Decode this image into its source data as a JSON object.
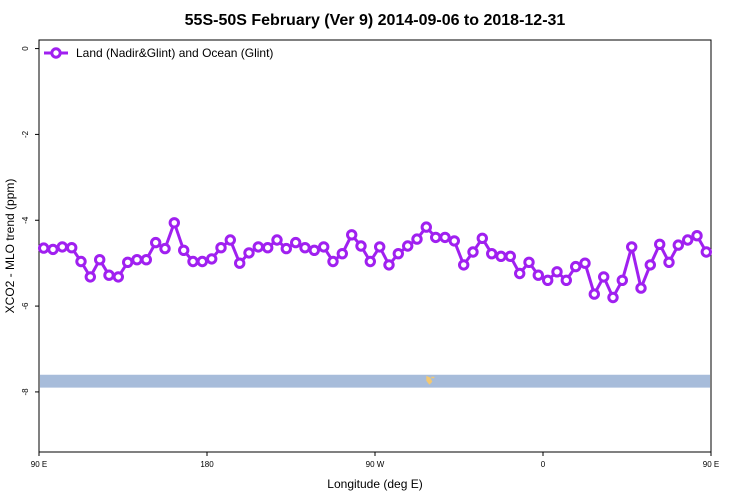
{
  "chart_data": {
    "type": "line",
    "title": "55S-50S February (Ver 9)   2014-09-06 to 2018-12-31",
    "xlabel": "Longitude (deg E)",
    "ylabel": "XCO2 - MLO trend (ppm)",
    "xlim": [
      90,
      450
    ],
    "ylim": [
      -9.4,
      0.2
    ],
    "x_ticks": [
      {
        "value": 90,
        "label": "90 E"
      },
      {
        "value": 180,
        "label": "180"
      },
      {
        "value": 270,
        "label": "90 W"
      },
      {
        "value": 360,
        "label": "0"
      },
      {
        "value": 450,
        "label": "90 E"
      }
    ],
    "y_ticks": [
      {
        "value": 0,
        "label": "0"
      },
      {
        "value": -2,
        "label": "-2"
      },
      {
        "value": -4,
        "label": "-4"
      },
      {
        "value": -6,
        "label": "-6"
      },
      {
        "value": -8,
        "label": "-8"
      }
    ],
    "series": [
      {
        "name": "Land (Nadir&Glint) and Ocean (Glint)",
        "color": "#a020f0",
        "x": [
          92.5,
          97.5,
          102.5,
          107.5,
          112.5,
          117.5,
          122.5,
          127.5,
          132.5,
          137.5,
          142.5,
          147.5,
          152.5,
          157.5,
          162.5,
          167.5,
          172.5,
          177.5,
          182.5,
          187.5,
          192.5,
          197.5,
          202.5,
          207.5,
          212.5,
          217.5,
          222.5,
          227.5,
          232.5,
          237.5,
          242.5,
          247.5,
          252.5,
          257.5,
          262.5,
          267.5,
          272.5,
          277.5,
          282.5,
          287.5,
          292.5,
          297.5,
          302.5,
          307.5,
          312.5,
          317.5,
          322.5,
          327.5,
          332.5,
          337.5,
          342.5,
          347.5,
          352.5,
          357.5,
          362.5,
          367.5,
          372.5,
          377.5,
          382.5,
          387.5,
          392.5,
          397.5,
          402.5,
          407.5,
          412.5,
          417.5,
          422.5,
          427.5,
          432.5,
          437.5,
          442.5,
          447.5
        ],
        "values": [
          -4.65,
          -4.68,
          -4.62,
          -4.64,
          -4.96,
          -5.32,
          -4.92,
          -5.28,
          -5.32,
          -4.98,
          -4.92,
          -4.92,
          -4.52,
          -4.66,
          -4.06,
          -4.7,
          -4.96,
          -4.96,
          -4.9,
          -4.64,
          -4.46,
          -5.0,
          -4.76,
          -4.62,
          -4.64,
          -4.46,
          -4.66,
          -4.52,
          -4.64,
          -4.7,
          -4.62,
          -4.96,
          -4.78,
          -4.34,
          -4.6,
          -4.96,
          -4.62,
          -5.04,
          -4.78,
          -4.6,
          -4.44,
          -4.16,
          -4.4,
          -4.4,
          -4.48,
          -5.04,
          -4.74,
          -4.42,
          -4.78,
          -4.84,
          -4.84,
          -5.24,
          -4.98,
          -5.28,
          -5.4,
          -5.2,
          -5.4,
          -5.08,
          -5.0,
          -5.72,
          -5.32,
          -5.8,
          -5.4,
          -4.62,
          -5.58,
          -5.04,
          -4.56,
          -4.98,
          -4.58,
          -4.46,
          -4.36,
          -4.74
        ],
        "values_tail": []
      }
    ],
    "legend": {
      "placement": "top-left",
      "label": "Land (Nadir&Glint) and Ocean (Glint)"
    },
    "coverage_band": {
      "y_range": [
        -7.9,
        -7.6
      ],
      "color": "#a7bcda",
      "highlight_color": "#f4c870"
    },
    "grid": false
  }
}
